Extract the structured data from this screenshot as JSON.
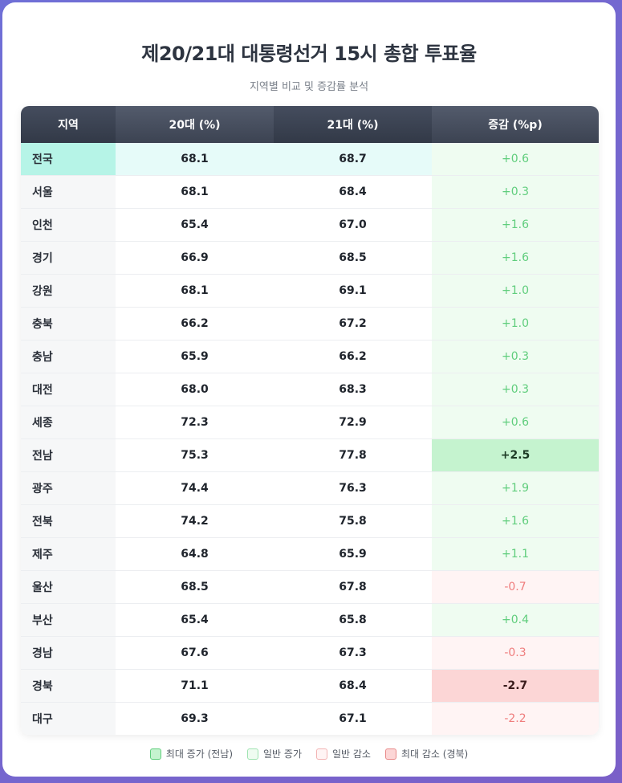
{
  "title": "제20/21대 대통령선거 15시 총합 투표율",
  "subtitle": "지역별 비교 및 증감률 분석",
  "headers": [
    "지역",
    "20대 (%)",
    "21대 (%)",
    "증감 (%p)"
  ],
  "rows": [
    {
      "region": "전국",
      "v20": "68.1",
      "v21": "68.7",
      "diff": "+0.6",
      "kind": "pos",
      "national": true
    },
    {
      "region": "서울",
      "v20": "68.1",
      "v21": "68.4",
      "diff": "+0.3",
      "kind": "pos"
    },
    {
      "region": "인천",
      "v20": "65.4",
      "v21": "67.0",
      "diff": "+1.6",
      "kind": "pos"
    },
    {
      "region": "경기",
      "v20": "66.9",
      "v21": "68.5",
      "diff": "+1.6",
      "kind": "pos"
    },
    {
      "region": "강원",
      "v20": "68.1",
      "v21": "69.1",
      "diff": "+1.0",
      "kind": "pos"
    },
    {
      "region": "충북",
      "v20": "66.2",
      "v21": "67.2",
      "diff": "+1.0",
      "kind": "pos"
    },
    {
      "region": "충남",
      "v20": "65.9",
      "v21": "66.2",
      "diff": "+0.3",
      "kind": "pos"
    },
    {
      "region": "대전",
      "v20": "68.0",
      "v21": "68.3",
      "diff": "+0.3",
      "kind": "pos"
    },
    {
      "region": "세종",
      "v20": "72.3",
      "v21": "72.9",
      "diff": "+0.6",
      "kind": "pos"
    },
    {
      "region": "전남",
      "v20": "75.3",
      "v21": "77.8",
      "diff": "+2.5",
      "kind": "maxpos"
    },
    {
      "region": "광주",
      "v20": "74.4",
      "v21": "76.3",
      "diff": "+1.9",
      "kind": "pos"
    },
    {
      "region": "전북",
      "v20": "74.2",
      "v21": "75.8",
      "diff": "+1.6",
      "kind": "pos"
    },
    {
      "region": "제주",
      "v20": "64.8",
      "v21": "65.9",
      "diff": "+1.1",
      "kind": "pos"
    },
    {
      "region": "울산",
      "v20": "68.5",
      "v21": "67.8",
      "diff": "-0.7",
      "kind": "neg"
    },
    {
      "region": "부산",
      "v20": "65.4",
      "v21": "65.8",
      "diff": "+0.4",
      "kind": "pos"
    },
    {
      "region": "경남",
      "v20": "67.6",
      "v21": "67.3",
      "diff": "-0.3",
      "kind": "neg"
    },
    {
      "region": "경북",
      "v20": "71.1",
      "v21": "68.4",
      "diff": "-2.7",
      "kind": "maxneg"
    },
    {
      "region": "대구",
      "v20": "69.3",
      "v21": "67.1",
      "diff": "-2.2",
      "kind": "neg"
    }
  ],
  "legend": [
    {
      "label": "최대 증가 (전남)",
      "fill": "#c5f3cf",
      "border": "#5fcd7c"
    },
    {
      "label": "일반 증가",
      "fill": "#effcf1",
      "border": "#9fe3b1"
    },
    {
      "label": "일반 감소",
      "fill": "#fff4f4",
      "border": "#f2b3b3"
    },
    {
      "label": "최대 감소 (경북)",
      "fill": "#fcd6d6",
      "border": "#e88a8a"
    }
  ]
}
